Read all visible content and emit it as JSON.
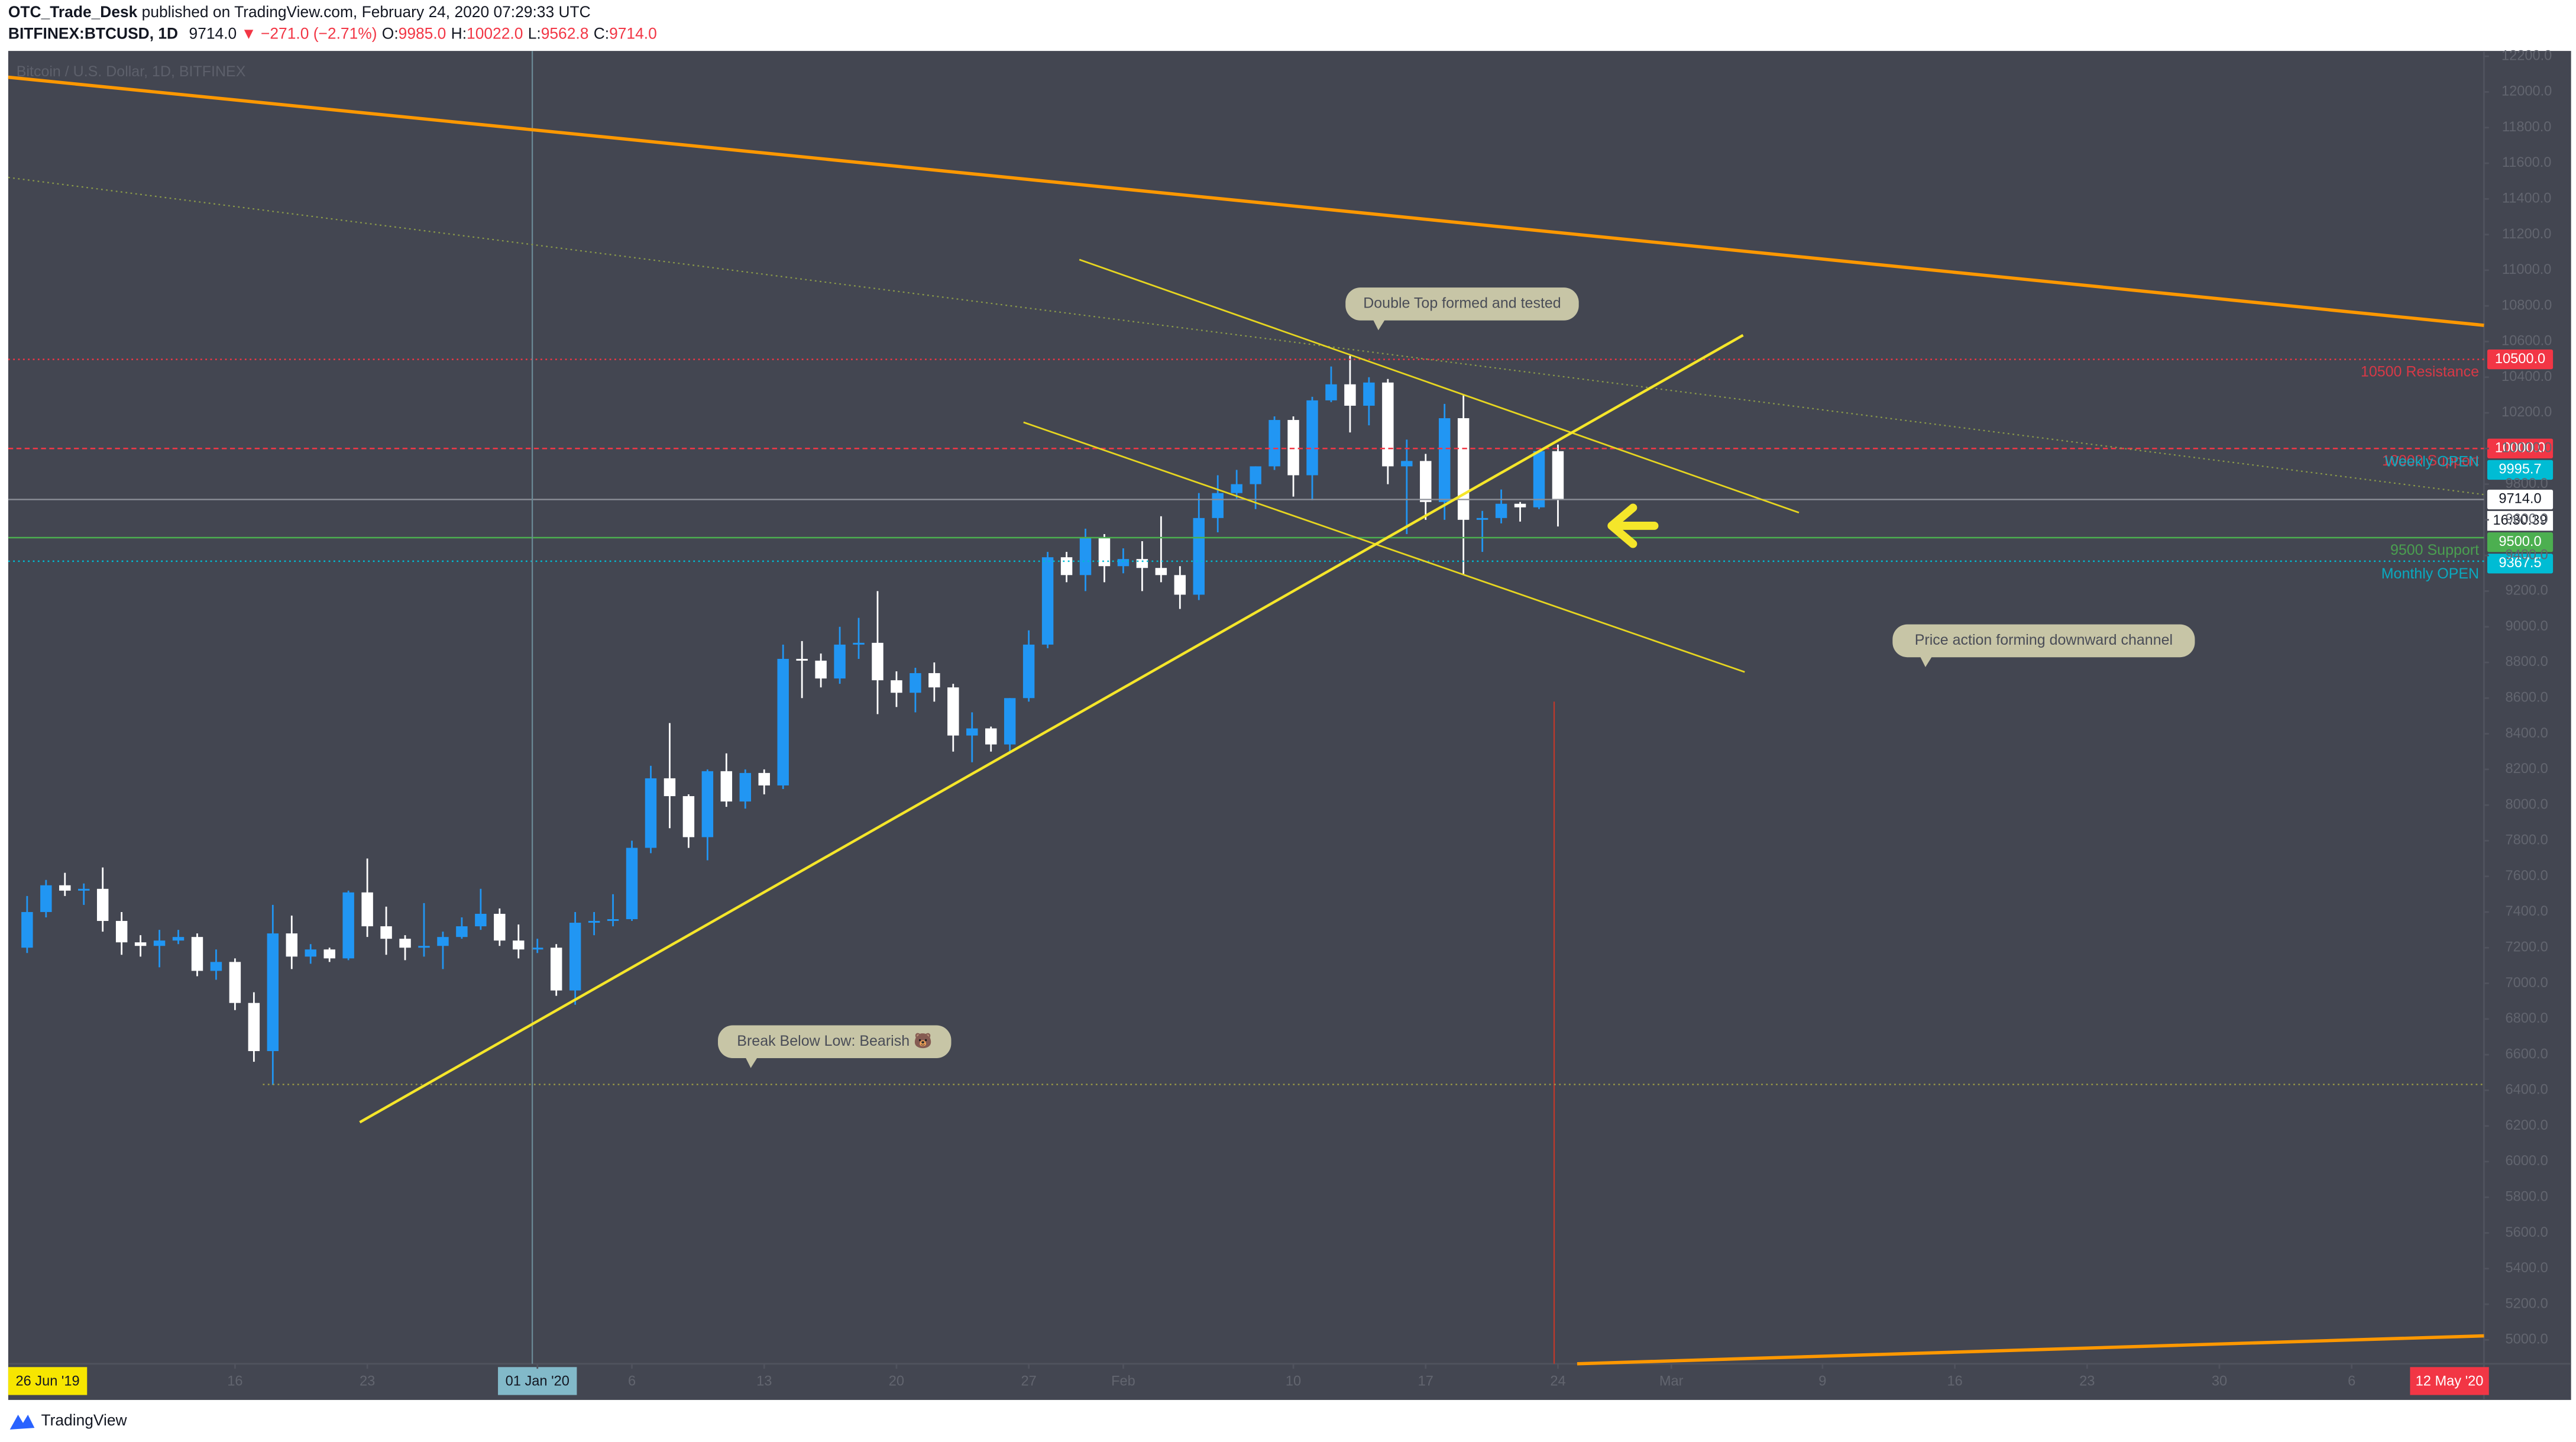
{
  "header": {
    "author": "OTC_Trade_Desk",
    "published": "published on TradingView.com, February 24, 2020 07:29:33 UTC",
    "symbol": "BITFINEX:BTCUSD, 1D",
    "last": "9714.0",
    "change": "▼ −271.0 (−2.71%)",
    "ohlc": [
      [
        "O:",
        "9985.0"
      ],
      [
        "H:",
        "10022.0"
      ],
      [
        "L:",
        "9562.8"
      ],
      [
        "C:",
        "9714.0"
      ]
    ]
  },
  "footer": {
    "brand": "TradingView"
  },
  "chart_data": {
    "type": "candlestick",
    "legend": "Bitcoin / U.S. Dollar, 1D, BITFINEX",
    "up_color": "#2196f3",
    "down_color": "#ffffff",
    "grid": false,
    "xlim": [
      "2019-12-04",
      "2020-04-13"
    ],
    "ylim": [
      4866,
      12230
    ],
    "x": [
      "2019-12-05",
      "2019-12-06",
      "2019-12-07",
      "2019-12-08",
      "2019-12-09",
      "2019-12-10",
      "2019-12-11",
      "2019-12-12",
      "2019-12-13",
      "2019-12-14",
      "2019-12-15",
      "2019-12-16",
      "2019-12-17",
      "2019-12-18",
      "2019-12-19",
      "2019-12-20",
      "2019-12-21",
      "2019-12-22",
      "2019-12-23",
      "2019-12-24",
      "2019-12-25",
      "2019-12-26",
      "2019-12-27",
      "2019-12-28",
      "2019-12-29",
      "2019-12-30",
      "2019-12-31",
      "2020-01-01",
      "2020-01-02",
      "2020-01-03",
      "2020-01-04",
      "2020-01-05",
      "2020-01-06",
      "2020-01-07",
      "2020-01-08",
      "2020-01-09",
      "2020-01-10",
      "2020-01-11",
      "2020-01-12",
      "2020-01-13",
      "2020-01-14",
      "2020-01-15",
      "2020-01-16",
      "2020-01-17",
      "2020-01-18",
      "2020-01-19",
      "2020-01-20",
      "2020-01-21",
      "2020-01-22",
      "2020-01-23",
      "2020-01-24",
      "2020-01-25",
      "2020-01-26",
      "2020-01-27",
      "2020-01-28",
      "2020-01-29",
      "2020-01-30",
      "2020-01-31",
      "2020-02-01",
      "2020-02-02",
      "2020-02-03",
      "2020-02-04",
      "2020-02-05",
      "2020-02-06",
      "2020-02-07",
      "2020-02-08",
      "2020-02-09",
      "2020-02-10",
      "2020-02-11",
      "2020-02-12",
      "2020-02-13",
      "2020-02-14",
      "2020-02-15",
      "2020-02-16",
      "2020-02-17",
      "2020-02-18",
      "2020-02-19",
      "2020-02-20",
      "2020-02-21",
      "2020-02-22",
      "2020-02-23",
      "2020-02-24"
    ],
    "open": [
      7200,
      7400,
      7550,
      7520,
      7530,
      7350,
      7230,
      7210,
      7240,
      7260,
      7070,
      7120,
      6890,
      6620,
      7280,
      7150,
      7190,
      7140,
      7510,
      7320,
      7250,
      7200,
      7210,
      7260,
      7320,
      7390,
      7240,
      7190,
      7200,
      6960,
      7340,
      7350,
      7360,
      7760,
      8150,
      8050,
      7820,
      8190,
      8020,
      8180,
      8110,
      8820,
      8810,
      8710,
      8900,
      8910,
      8700,
      8630,
      8740,
      8660,
      8390,
      8430,
      8340,
      8600,
      8900,
      9390,
      9290,
      9500,
      9340,
      9380,
      9330,
      9290,
      9180,
      9610,
      9750,
      9800,
      9900,
      10160,
      9850,
      10270,
      10360,
      10240,
      10370,
      9900,
      9930,
      9700,
      10170,
      9600,
      9610,
      9690,
      9670,
      9985
    ],
    "high": [
      7490,
      7580,
      7620,
      7560,
      7650,
      7400,
      7270,
      7300,
      7300,
      7280,
      7190,
      7140,
      6950,
      7440,
      7380,
      7220,
      7200,
      7520,
      7700,
      7430,
      7270,
      7450,
      7290,
      7370,
      7530,
      7420,
      7330,
      7250,
      7220,
      7400,
      7400,
      7500,
      7800,
      8220,
      8460,
      8060,
      8200,
      8290,
      8200,
      8200,
      8900,
      8920,
      8850,
      9000,
      9050,
      9200,
      8750,
      8770,
      8800,
      8680,
      8520,
      8440,
      8600,
      8980,
      9420,
      9420,
      9550,
      9520,
      9440,
      9480,
      9620,
      9340,
      9750,
      9850,
      9880,
      9900,
      10180,
      10180,
      10290,
      10460,
      10520,
      10400,
      10390,
      10050,
      9970,
      10250,
      10300,
      9650,
      9770,
      9700,
      9990,
      10022
    ],
    "low": [
      7170,
      7370,
      7490,
      7440,
      7290,
      7160,
      7150,
      7090,
      7220,
      7040,
      7020,
      6850,
      6560,
      6430,
      7080,
      7110,
      7120,
      7130,
      7260,
      7160,
      7130,
      7150,
      7080,
      7250,
      7300,
      7210,
      7140,
      7170,
      6930,
      6880,
      7270,
      7320,
      7350,
      7730,
      7870,
      7760,
      7690,
      7990,
      7980,
      8060,
      8090,
      8600,
      8660,
      8680,
      8820,
      8510,
      8550,
      8520,
      8580,
      8300,
      8240,
      8300,
      8300,
      8580,
      8880,
      9250,
      9200,
      9250,
      9300,
      9200,
      9250,
      9100,
      9150,
      9530,
      9720,
      9660,
      9880,
      9730,
      9710,
      10260,
      10090,
      10130,
      9800,
      9520,
      9600,
      9600,
      9290,
      9420,
      9580,
      9590,
      9660,
      9562.8
    ],
    "close": [
      7400,
      7550,
      7520,
      7530,
      7350,
      7230,
      7210,
      7240,
      7260,
      7070,
      7120,
      6890,
      6620,
      7280,
      7150,
      7190,
      7140,
      7510,
      7320,
      7250,
      7200,
      7210,
      7260,
      7320,
      7390,
      7240,
      7190,
      7200,
      6960,
      7340,
      7350,
      7360,
      7760,
      8150,
      8050,
      7820,
      8190,
      8020,
      8180,
      8110,
      8820,
      8810,
      8710,
      8900,
      8910,
      8700,
      8630,
      8740,
      8660,
      8390,
      8430,
      8340,
      8600,
      8900,
      9390,
      9290,
      9500,
      9340,
      9380,
      9330,
      9290,
      9180,
      9610,
      9750,
      9800,
      9900,
      10160,
      9850,
      10270,
      10360,
      10240,
      10370,
      9900,
      9930,
      9700,
      10170,
      9600,
      9610,
      9690,
      9670,
      9985,
      9714
    ],
    "yticks": [
      {
        "value": 5000,
        "label": "5000.0"
      },
      {
        "value": 5200,
        "label": "5200.0"
      },
      {
        "value": 5400,
        "label": "5400.0"
      },
      {
        "value": 5600,
        "label": "5600.0"
      },
      {
        "value": 5800,
        "label": "5800.0"
      },
      {
        "value": 6000,
        "label": "6000.0"
      },
      {
        "value": 6200,
        "label": "6200.0"
      },
      {
        "value": 6400,
        "label": "6400.0"
      },
      {
        "value": 6600,
        "label": "6600.0"
      },
      {
        "value": 6800,
        "label": "6800.0"
      },
      {
        "value": 7000,
        "label": "7000.0"
      },
      {
        "value": 7200,
        "label": "7200.0"
      },
      {
        "value": 7400,
        "label": "7400.0"
      },
      {
        "value": 7600,
        "label": "7600.0"
      },
      {
        "value": 7800,
        "label": "7800.0"
      },
      {
        "value": 8000,
        "label": "8000.0"
      },
      {
        "value": 8200,
        "label": "8200.0"
      },
      {
        "value": 8400,
        "label": "8400.0"
      },
      {
        "value": 8600,
        "label": "8600.0"
      },
      {
        "value": 8800,
        "label": "8800.0"
      },
      {
        "value": 9000,
        "label": "9000.0"
      },
      {
        "value": 9200,
        "label": "9200.0"
      },
      {
        "value": 9400,
        "label": "9400.0"
      },
      {
        "value": 9600,
        "label": "9600.0"
      },
      {
        "value": 9800,
        "label": "9800.0"
      },
      {
        "value": 10000,
        "label": "10000.0"
      },
      {
        "value": 10200,
        "label": "10200.0"
      },
      {
        "value": 10400,
        "label": "10400.0"
      },
      {
        "value": 10600,
        "label": "10600.0"
      },
      {
        "value": 10800,
        "label": "10800.0"
      },
      {
        "value": 11000,
        "label": "11000.0"
      },
      {
        "value": 11200,
        "label": "11200.0"
      },
      {
        "value": 11400,
        "label": "11400.0"
      },
      {
        "value": 11600,
        "label": "11600.0"
      },
      {
        "value": 11800,
        "label": "11800.0"
      },
      {
        "value": 12000,
        "label": "12000.0"
      },
      {
        "value": 12200,
        "label": "12200.0"
      }
    ],
    "xticks": [
      {
        "value": "2019-12-16",
        "label": "16"
      },
      {
        "value": "2019-12-23",
        "label": "23"
      },
      {
        "value": "2020-01-01",
        "label": "01 Jan '20",
        "highlight": true
      },
      {
        "value": "2020-01-06",
        "label": "6"
      },
      {
        "value": "2020-01-13",
        "label": "13"
      },
      {
        "value": "2020-01-20",
        "label": "20"
      },
      {
        "value": "2020-01-27",
        "label": "27"
      },
      {
        "value": "2020-02-01",
        "label": "Feb"
      },
      {
        "value": "2020-02-10",
        "label": "10"
      },
      {
        "value": "2020-02-17",
        "label": "17"
      },
      {
        "value": "2020-02-24",
        "label": "24"
      },
      {
        "value": "2020-03-01",
        "label": "Mar"
      },
      {
        "value": "2020-03-09",
        "label": "9"
      },
      {
        "value": "2020-03-16",
        "label": "16"
      },
      {
        "value": "2020-03-23",
        "label": "23"
      },
      {
        "value": "2020-03-30",
        "label": "30"
      },
      {
        "value": "2020-04-06",
        "label": "6"
      }
    ],
    "range_labels": [
      "26 Jun '19",
      "12 May '20"
    ],
    "levels": [
      {
        "name": "10500 Resistance",
        "value": 10500,
        "label": "10500.0",
        "color": "#f23645",
        "style": "dotted"
      },
      {
        "name": "10000 Support",
        "value": 10000,
        "label": "10000.0",
        "color": "#f23645",
        "style": "dashed"
      },
      {
        "name": "Weekly OPEN",
        "value": 9995.7,
        "label": "9995.7",
        "color": "#00bcd4",
        "style": "none"
      },
      {
        "name": "9500 Support",
        "value": 9500,
        "label": "9500.0",
        "color": "#4caf50",
        "style": "solid"
      },
      {
        "name": "Monthly OPEN",
        "value": 9367.5,
        "label": "9367.5",
        "color": "#00bcd4",
        "style": "dotted"
      }
    ],
    "last_price": {
      "value": 9714,
      "label": "9714.0",
      "countdown": "16:30:39"
    },
    "annotations": [
      "Double Top formed and tested",
      "Price action forming downward channel",
      "Break Below Low: Bearish 🐻"
    ]
  }
}
